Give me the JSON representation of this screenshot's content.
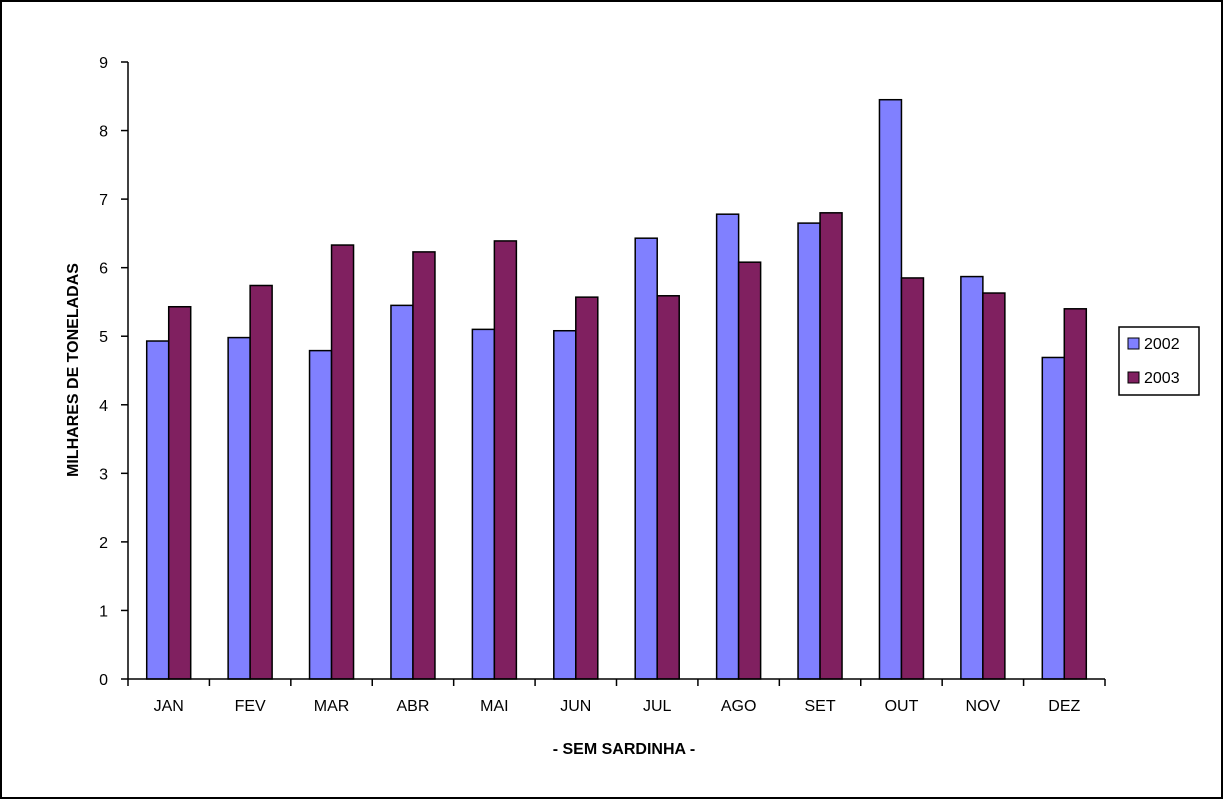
{
  "chart_data": {
    "type": "bar",
    "title": "",
    "xlabel": "- SEM SARDINHA -",
    "ylabel": "MILHARES DE TONELADAS",
    "ylim": [
      0,
      9
    ],
    "yticks": [
      "0",
      "1",
      "2",
      "3",
      "4",
      "5",
      "6",
      "7",
      "8",
      "9"
    ],
    "categories": [
      "JAN",
      "FEV",
      "MAR",
      "ABR",
      "MAI",
      "JUN",
      "JUL",
      "AGO",
      "SET",
      "OUT",
      "NOV",
      "DEZ"
    ],
    "series": [
      {
        "name": "2002",
        "color": "#8080ff",
        "values": [
          4.93,
          4.98,
          4.79,
          5.45,
          5.1,
          5.08,
          6.43,
          6.78,
          6.65,
          8.45,
          5.87,
          4.69
        ]
      },
      {
        "name": "2003",
        "color": "#802060",
        "values": [
          5.43,
          5.74,
          6.33,
          6.23,
          6.39,
          5.57,
          5.59,
          6.08,
          6.8,
          5.85,
          5.63,
          5.4
        ]
      }
    ],
    "grid": false,
    "legend_position": "right"
  }
}
